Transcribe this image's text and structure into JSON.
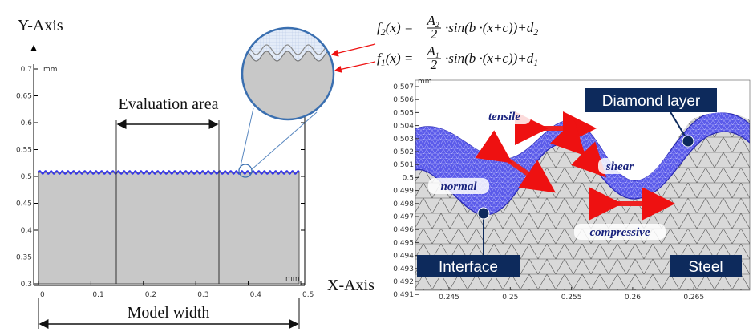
{
  "axis_titles": {
    "y": "Y-Axis",
    "x": "X-Axis"
  },
  "left_plot": {
    "unit_top": "mm",
    "unit_bottom": "mm",
    "yticks": [
      "0.7",
      "0.65",
      "0.6",
      "0.55",
      "0.5",
      "0.45",
      "0.4",
      "0.35",
      "0.3"
    ],
    "xticks": [
      "0",
      "0.1",
      "0.2",
      "0.3",
      "0.4",
      "0.5"
    ],
    "evaluation_label": "Evaluation area",
    "width_label": "Model width"
  },
  "formulas": [
    {
      "f": "f",
      "f_sub": "2",
      "lhs": "(x) = ",
      "num": "A",
      "num_sub": "2",
      "den": "2",
      "tail": "·sin(b ·(x+c))+d",
      "tail_sub": "2"
    },
    {
      "f": "f",
      "f_sub": "1",
      "lhs": "(x) = ",
      "num": "A",
      "num_sub": "1",
      "den": "2",
      "tail": "·sin(b ·(x+c))+d",
      "tail_sub": "1"
    }
  ],
  "right_plot": {
    "unit": "mm",
    "yticks": [
      "0.507",
      "0.506",
      "0.505",
      "0.504",
      "0.503",
      "0.502",
      "0.501",
      "0.5",
      "0.499",
      "0.498",
      "0.497",
      "0.496",
      "0.495",
      "0.494",
      "0.493",
      "0.492",
      "0.491"
    ],
    "xticks": [
      "0.245",
      "0.25",
      "0.255",
      "0.26",
      "0.265"
    ],
    "stress_labels": {
      "tensile": "tensile",
      "shear": "shear",
      "normal": "normal",
      "compressive": "compressive"
    },
    "callouts": {
      "diamond": "Diamond layer",
      "interface": "Interface",
      "steel": "Steel"
    }
  }
}
